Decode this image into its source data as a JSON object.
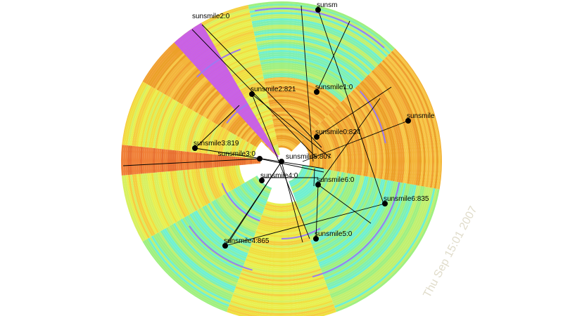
{
  "watermark": "Thu Sep 15:01 2007",
  "nodes": [
    {
      "label": "sunsm"
    },
    {
      "label": "sunsmile2:0"
    },
    {
      "label": "sunsmile2:821"
    },
    {
      "label": "sunsmile1:0"
    },
    {
      "label": "sunsmile"
    },
    {
      "label": "sunsmile0:824"
    },
    {
      "label": "sunsmile3:819"
    },
    {
      "label": "sunsmile3:0"
    },
    {
      "label": "sunsmile5:807"
    },
    {
      "label": "sunsmile4:0"
    },
    {
      "label": "sunsmile6:0"
    },
    {
      "label": "sunsmile6:835"
    },
    {
      "label": "sunsmile5:0"
    },
    {
      "label": "sunsmile4:865"
    }
  ],
  "colors": {
    "orange": "#f0a030",
    "yellow": "#f0e040",
    "green": "#a0f080",
    "cyan": "#70f0d0",
    "magenta": "#c860e8",
    "darkorange": "#e87030",
    "ring": "#9b7cf0"
  }
}
